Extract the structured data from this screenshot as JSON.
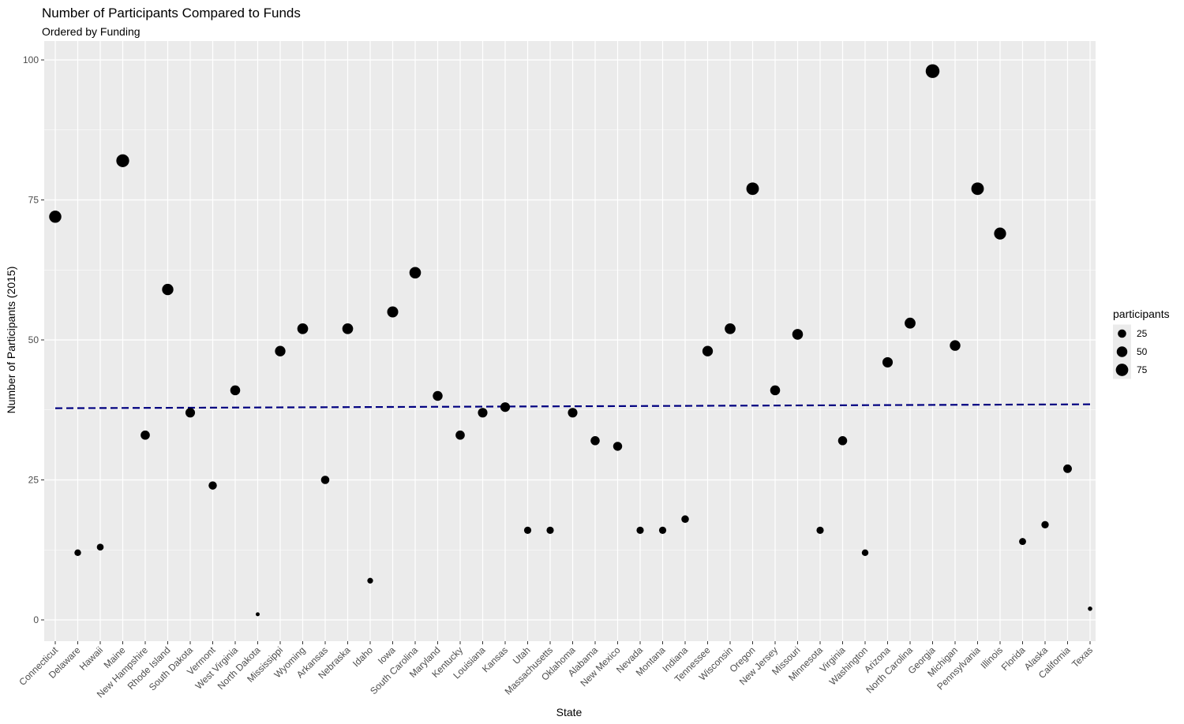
{
  "chart_data": {
    "type": "scatter",
    "title": "Number of Participants Compared to Funds",
    "subtitle": "Ordered by Funding",
    "xlabel": "State",
    "ylabel": "Number of Participants (2015)",
    "ylim": [
      0,
      100
    ],
    "yticks": [
      "0",
      "25",
      "50",
      "75",
      "100"
    ],
    "grid": true,
    "categories": [
      "Connecticut",
      "Delaware",
      "Hawaii",
      "Maine",
      "New Hampshire",
      "Rhode Island",
      "South Dakota",
      "Vermont",
      "West Virginia",
      "North Dakota",
      "Mississippi",
      "Wyoming",
      "Arkansas",
      "Nebraska",
      "Idaho",
      "Iowa",
      "South Carolina",
      "Maryland",
      "Kentucky",
      "Louisiana",
      "Kansas",
      "Utah",
      "Massachusetts",
      "Oklahoma",
      "Alabama",
      "New Mexico",
      "Nevada",
      "Montana",
      "Indiana",
      "Tennessee",
      "Wisconsin",
      "Oregon",
      "New Jersey",
      "Missouri",
      "Minnesota",
      "Virginia",
      "Washington",
      "Arizona",
      "North Carolina",
      "Georgia",
      "Michigan",
      "Pennsylvania",
      "Illinois",
      "Florida",
      "Alaska",
      "California",
      "Texas"
    ],
    "values": [
      72,
      12,
      13,
      82,
      33,
      59,
      37,
      24,
      41,
      1,
      48,
      52,
      25,
      52,
      7,
      55,
      62,
      40,
      33,
      37,
      38,
      16,
      16,
      37,
      32,
      31,
      16,
      16,
      18,
      48,
      52,
      77,
      41,
      51,
      16,
      32,
      12,
      46,
      53,
      98,
      49,
      77,
      69,
      14,
      17,
      27,
      2
    ],
    "trend_line": {
      "start": 37.8,
      "end": 38.5,
      "color": "#000080",
      "style": "dashed"
    },
    "legend": {
      "title": "participants",
      "placement": "right",
      "entries": [
        {
          "label": "25",
          "value": 25
        },
        {
          "label": "50",
          "value": 50
        },
        {
          "label": "75",
          "value": 75
        }
      ]
    },
    "colors": {
      "panel": "#ebebeb",
      "grid": "#ffffff",
      "point": "#000000"
    }
  }
}
